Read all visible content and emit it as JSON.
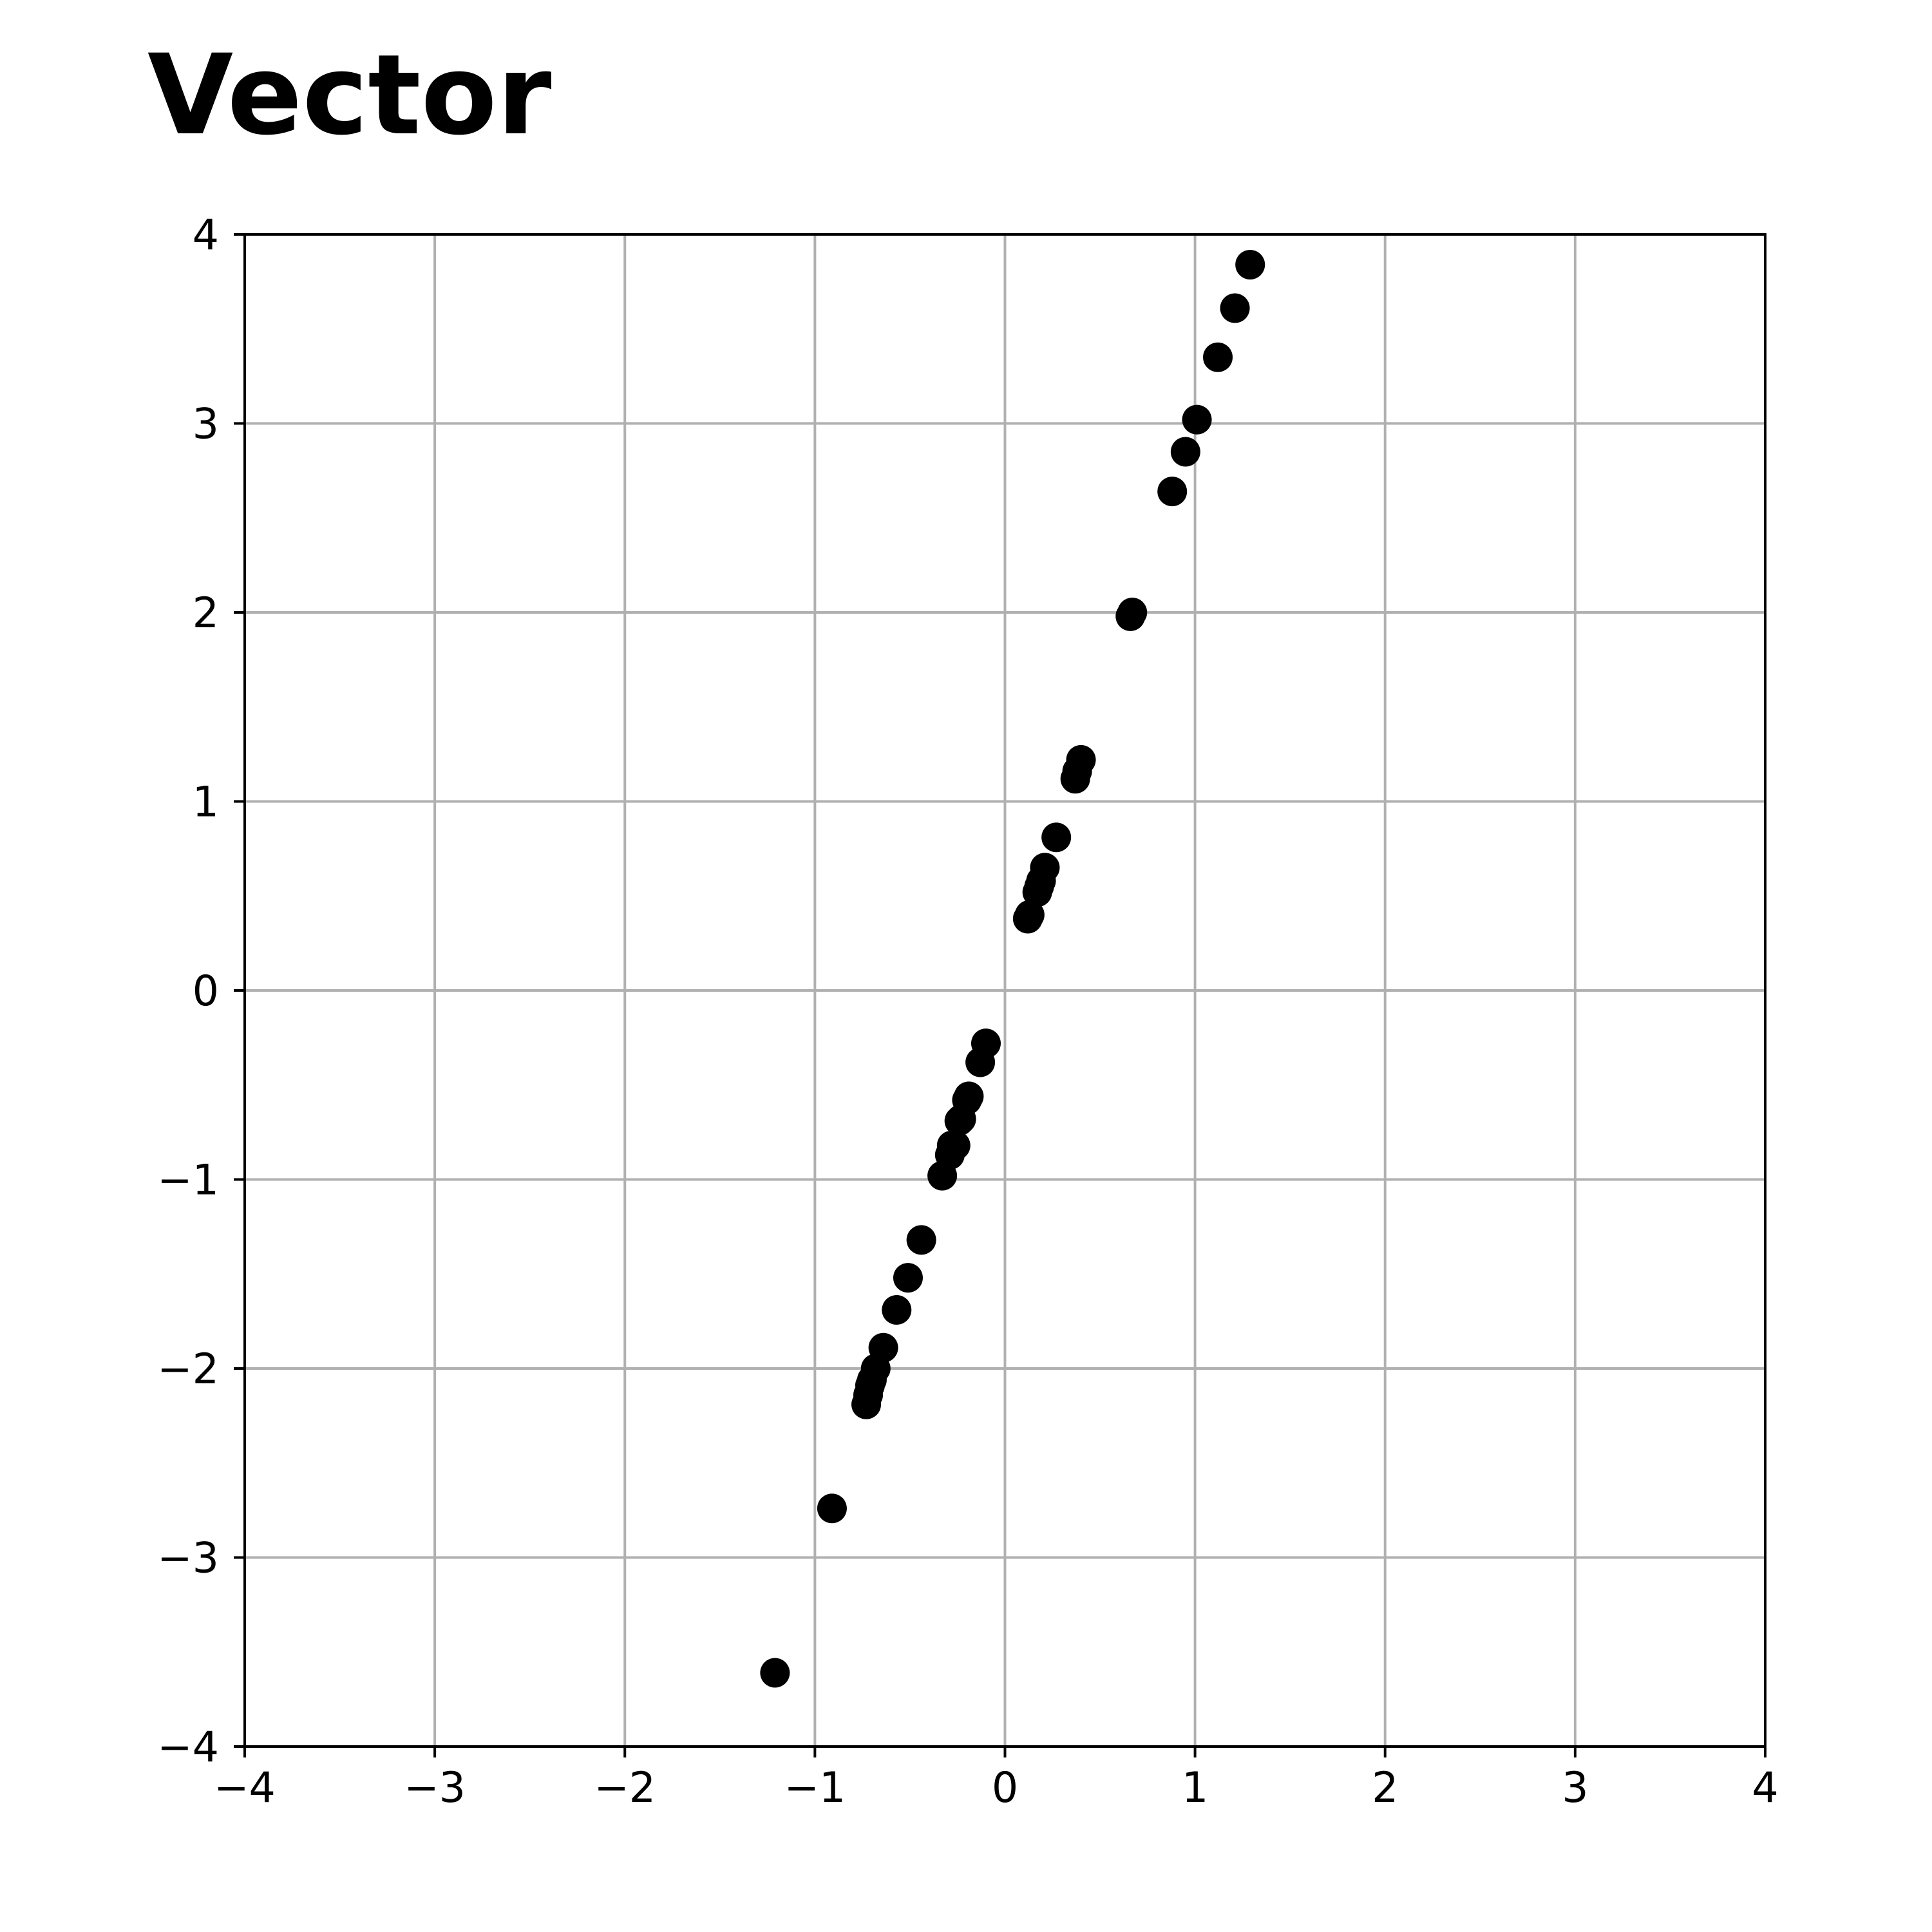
{
  "chart_data": {
    "type": "scatter",
    "title": "Vector",
    "xlabel": "",
    "ylabel": "",
    "xlim": [
      -4,
      4
    ],
    "ylim": [
      -4,
      4
    ],
    "x_ticks": [
      -4,
      -3,
      -2,
      -1,
      0,
      1,
      2,
      3,
      4
    ],
    "y_ticks": [
      -4,
      -3,
      -2,
      -1,
      0,
      1,
      2,
      3,
      4
    ],
    "x_tick_labels": [
      "−4",
      "−3",
      "−2",
      "−1",
      "0",
      "1",
      "2",
      "3",
      "4"
    ],
    "y_tick_labels": [
      "−4",
      "−3",
      "−2",
      "−1",
      "0",
      "1",
      "2",
      "3",
      "4"
    ],
    "grid": true,
    "marker_color": "#000000",
    "grid_color": "#b0b0b0",
    "series": [
      {
        "x": [
          -1.21,
          -0.91,
          -0.73,
          -0.72,
          -0.71,
          -0.7,
          -0.68,
          -0.64,
          -0.57,
          -0.51,
          -0.44,
          -0.33,
          -0.29,
          -0.28,
          -0.26,
          -0.24,
          -0.23,
          -0.2,
          -0.19,
          -0.13,
          -0.1,
          0.12,
          0.13,
          0.17,
          0.18,
          0.19,
          0.21,
          0.27,
          0.37,
          0.38,
          0.4,
          0.66,
          0.67,
          0.88,
          0.95,
          1.01,
          1.12,
          1.21,
          1.29
        ],
        "y": [
          -3.61,
          -2.74,
          -2.19,
          -2.14,
          -2.09,
          -2.06,
          -2.0,
          -1.89,
          -1.69,
          -1.52,
          -1.32,
          -0.98,
          -0.87,
          -0.82,
          -0.82,
          -0.69,
          -0.68,
          -0.58,
          -0.56,
          -0.38,
          -0.28,
          0.38,
          0.4,
          0.52,
          0.55,
          0.58,
          0.65,
          0.81,
          1.12,
          1.16,
          1.22,
          1.98,
          2.0,
          2.64,
          2.85,
          3.02,
          3.35,
          3.61,
          3.84
        ]
      }
    ]
  }
}
